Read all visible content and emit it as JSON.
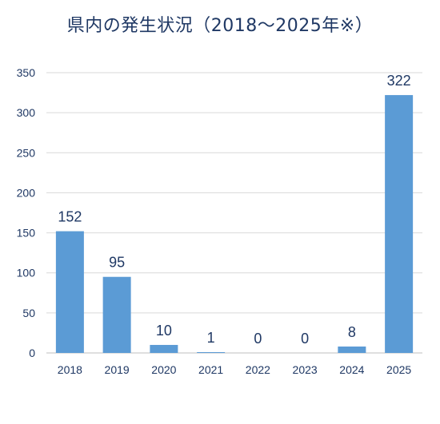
{
  "chart_data": {
    "type": "bar",
    "title": "県内の発生状況（2018～2025年※）",
    "xlabel": "",
    "ylabel": "",
    "categories": [
      "2018",
      "2019",
      "2020",
      "2021",
      "2022",
      "2023",
      "2024",
      "2025"
    ],
    "values": [
      152,
      95,
      10,
      1,
      0,
      0,
      8,
      322
    ],
    "data_labels": [
      "152",
      "95",
      "10",
      "1",
      "0",
      "0",
      "8",
      "322"
    ],
    "ylim": [
      0,
      350
    ],
    "yticks": [
      0,
      50,
      100,
      150,
      200,
      250,
      300,
      350
    ],
    "grid": true,
    "legend": "none",
    "colors": {
      "bar": "#5b9bd5",
      "text": "#1f3864",
      "grid": "#d9d9d9"
    }
  }
}
